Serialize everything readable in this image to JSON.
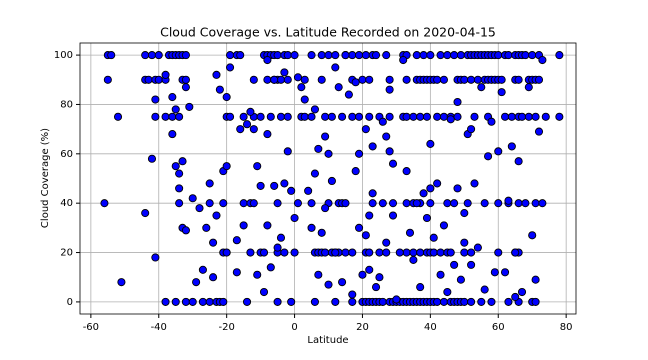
{
  "chart_data": {
    "type": "scatter",
    "title": "Cloud Coverage vs. Latitude Recorded on 2020-04-15",
    "x_label": "Latitude",
    "y_label": "Cloud Coverage (%)",
    "color": "#0000ff",
    "edge_color": "#000000",
    "grid": true,
    "xlim": [
      -63.2,
      82.9
    ],
    "ylim": [
      -4.9,
      104.9
    ],
    "xticks": [
      -60,
      -40,
      -20,
      0,
      20,
      40,
      60,
      80
    ],
    "yticks": [
      0,
      20,
      40,
      60,
      80,
      100
    ],
    "x": [
      -55,
      -54,
      -44,
      -42,
      -40,
      -37,
      -36,
      -35,
      -34,
      -33,
      -32,
      -19,
      -17,
      -16,
      -9,
      -8,
      -7,
      -6,
      -5,
      -3,
      -2,
      0,
      5,
      8,
      10,
      12,
      15,
      17,
      19,
      21,
      23,
      24,
      27,
      32,
      33,
      36,
      38,
      40,
      43,
      45,
      47,
      49,
      51,
      52,
      53,
      54,
      55,
      56,
      57,
      58,
      59,
      60,
      62,
      63,
      65,
      66,
      67,
      68,
      70,
      72,
      78,
      -55,
      -44,
      -43,
      -41,
      -40,
      -38,
      -33,
      -32,
      -12,
      -8,
      -6,
      -5,
      -4,
      -2,
      3,
      8,
      17,
      20,
      22,
      28,
      33,
      36,
      37,
      38,
      39,
      40,
      41,
      42,
      44,
      48,
      49,
      50,
      52,
      54,
      56,
      57,
      58,
      59,
      60,
      61,
      65,
      66,
      69,
      70,
      71,
      72,
      -52,
      -41,
      -38,
      -36,
      -34,
      -20,
      -19,
      -15,
      -12,
      -10,
      -7,
      -4,
      -2,
      2,
      3,
      5,
      9,
      11,
      14,
      17,
      19,
      22,
      25,
      28,
      32,
      33,
      35,
      37,
      39,
      42,
      44,
      46,
      48,
      53,
      57,
      62,
      64,
      66,
      67,
      69,
      71,
      74,
      78,
      -21,
      -20,
      -13,
      -10,
      -9,
      -5,
      -3,
      0,
      6,
      7,
      8,
      9,
      11,
      12,
      13,
      15,
      17,
      21,
      22,
      25,
      27,
      33,
      35,
      37,
      39,
      40,
      41,
      43,
      45,
      46,
      50,
      52,
      60,
      65,
      66,
      -56,
      -34,
      -25,
      -21,
      -15,
      -13,
      -12,
      -5,
      1,
      5,
      10,
      13,
      14,
      15,
      23,
      26,
      29,
      33,
      35,
      37,
      40,
      45,
      47,
      51,
      56,
      60,
      63,
      66,
      68,
      71,
      73,
      -38,
      -35,
      -32,
      -30,
      -27,
      -25,
      -23,
      -22,
      -21,
      -14,
      -5,
      -1,
      6,
      12,
      17,
      20,
      21,
      22,
      23,
      24,
      25,
      26,
      28,
      29,
      30,
      31,
      32,
      33,
      34,
      35,
      36,
      37,
      38,
      39,
      40,
      41,
      42,
      44,
      46,
      47,
      48,
      49,
      50,
      52,
      55,
      58,
      63,
      66,
      70,
      71,
      -51,
      -44,
      -42,
      -41,
      -41,
      -38,
      -36,
      -36,
      -35,
      -35,
      -34,
      -34,
      -33,
      -33,
      -32,
      -32,
      -31,
      -30,
      -29,
      -28,
      -27,
      -26,
      -25,
      -24,
      -24,
      -23,
      -23,
      -22,
      -21,
      -20,
      -20,
      -19,
      -17,
      -17,
      -16,
      -15,
      -14,
      -13,
      -12,
      -11,
      -11,
      -10,
      -9,
      -8,
      -8,
      -8,
      -7,
      -6,
      -6,
      -5,
      -4,
      -3,
      -3,
      -2,
      -1,
      0,
      1,
      2,
      3,
      4,
      5,
      6,
      6,
      7,
      7,
      8,
      9,
      9,
      10,
      10,
      11,
      12,
      12,
      13,
      14,
      15,
      16,
      17,
      18,
      18,
      19,
      19,
      20,
      21,
      21,
      22,
      22,
      23,
      23,
      24,
      25,
      26,
      27,
      27,
      28,
      28,
      29,
      29,
      30,
      31,
      32,
      33,
      34,
      35,
      36,
      37,
      38,
      39,
      40,
      40,
      41,
      42,
      43,
      44,
      45,
      46,
      47,
      48,
      48,
      49,
      50,
      50,
      51,
      52,
      52,
      53,
      54,
      55,
      56,
      57,
      58,
      59,
      60,
      61,
      62,
      63,
      64,
      65,
      65,
      66,
      67,
      69,
      70,
      71,
      72,
      73
    ],
    "values": [
      100,
      100,
      100,
      100,
      100,
      100,
      100,
      100,
      100,
      100,
      100,
      100,
      100,
      100,
      100,
      100,
      100,
      100,
      100,
      100,
      100,
      100,
      100,
      100,
      100,
      100,
      100,
      100,
      100,
      100,
      100,
      100,
      100,
      100,
      100,
      100,
      100,
      100,
      100,
      100,
      100,
      100,
      100,
      100,
      100,
      100,
      100,
      100,
      100,
      100,
      100,
      100,
      100,
      100,
      100,
      100,
      100,
      100,
      100,
      100,
      100,
      90,
      90,
      90,
      90,
      90,
      90,
      90,
      90,
      90,
      90,
      90,
      90,
      90,
      90,
      90,
      90,
      90,
      90,
      90,
      90,
      90,
      90,
      90,
      90,
      90,
      90,
      90,
      90,
      90,
      90,
      90,
      90,
      90,
      90,
      90,
      90,
      90,
      90,
      90,
      90,
      90,
      90,
      90,
      90,
      90,
      90,
      75,
      75,
      75,
      75,
      75,
      75,
      75,
      75,
      75,
      75,
      75,
      75,
      75,
      75,
      75,
      75,
      75,
      75,
      75,
      75,
      75,
      75,
      75,
      75,
      75,
      75,
      75,
      75,
      75,
      75,
      75,
      75,
      75,
      75,
      75,
      75,
      75,
      75,
      75,
      75,
      75,
      75,
      75,
      20,
      20,
      20,
      20,
      20,
      20,
      20,
      20,
      20,
      20,
      20,
      20,
      20,
      20,
      20,
      20,
      20,
      20,
      20,
      20,
      20,
      20,
      20,
      20,
      20,
      20,
      20,
      20,
      20,
      20,
      20,
      20,
      20,
      20,
      20,
      40,
      40,
      40,
      40,
      40,
      40,
      40,
      40,
      40,
      40,
      40,
      40,
      40,
      40,
      40,
      40,
      40,
      40,
      40,
      40,
      40,
      40,
      40,
      40,
      40,
      40,
      40,
      40,
      40,
      40,
      40,
      0,
      0,
      0,
      0,
      0,
      0,
      0,
      0,
      0,
      0,
      0,
      0,
      0,
      0,
      0,
      0,
      0,
      0,
      0,
      0,
      0,
      0,
      0,
      0,
      0,
      0,
      0,
      0,
      0,
      0,
      0,
      0,
      0,
      0,
      0,
      0,
      0,
      0,
      0,
      0,
      0,
      0,
      0,
      0,
      0,
      0,
      0,
      0,
      0,
      0,
      8,
      36,
      58,
      18,
      82,
      92,
      68,
      83,
      78,
      55,
      46,
      52,
      57,
      30,
      29,
      87,
      79,
      42,
      8,
      38,
      13,
      30,
      48,
      24,
      10,
      92,
      35,
      86,
      53,
      55,
      83,
      95,
      25,
      12,
      70,
      31,
      72,
      77,
      70,
      55,
      11,
      47,
      4,
      98,
      68,
      31,
      14,
      90,
      47,
      22,
      26,
      48,
      93,
      61,
      45,
      34,
      91,
      87,
      82,
      45,
      30,
      52,
      78,
      62,
      11,
      28,
      67,
      38,
      60,
      7,
      49,
      95,
      20,
      87,
      8,
      100,
      84,
      3,
      89,
      53,
      60,
      30,
      11,
      70,
      27,
      35,
      13,
      44,
      63,
      6,
      10,
      73,
      24,
      67,
      86,
      61,
      56,
      35,
      1,
      20,
      98,
      53,
      28,
      17,
      40,
      6,
      44,
      34,
      64,
      46,
      26,
      48,
      11,
      31,
      4,
      74,
      15,
      46,
      81,
      9,
      36,
      24,
      68,
      70,
      15,
      48,
      22,
      87,
      5,
      59,
      73,
      12,
      61,
      85,
      12,
      41,
      63,
      2,
      20,
      57,
      4,
      87,
      27,
      9,
      69,
      98
    ]
  }
}
